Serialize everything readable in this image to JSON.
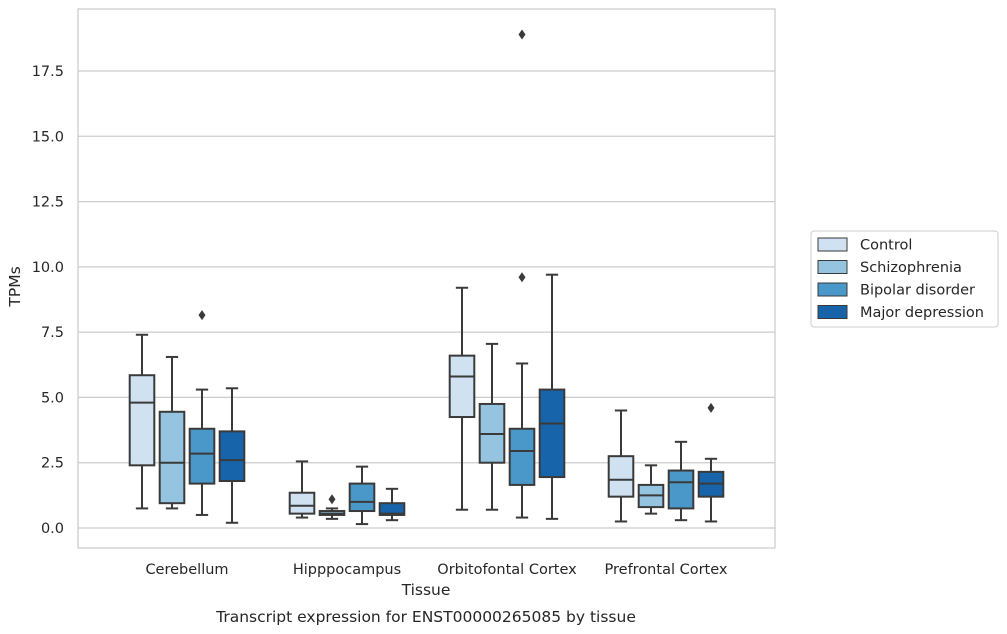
{
  "chart_data": {
    "type": "boxplot",
    "title": "",
    "caption": "Transcript expression for ENST00000265085 by tissue",
    "xlabel": "Tissue",
    "ylabel": "TPMs",
    "ylim": [
      -0.75,
      19.85
    ],
    "yticks": [
      0.0,
      2.5,
      5.0,
      7.5,
      10.0,
      12.5,
      15.0,
      17.5
    ],
    "ytick_labels": [
      "0.0",
      "2.5",
      "5.0",
      "7.5",
      "10.0",
      "12.5",
      "15.0",
      "17.5"
    ],
    "grid": "horizontal",
    "legend_position": "right",
    "categories": [
      "Cerebellum",
      "Hipppocampus",
      "Orbitofontal Cortex",
      "Prefrontal Cortex"
    ],
    "series": [
      {
        "name": "Control",
        "color": "#d0e1f2",
        "boxes": [
          {
            "whisker_low": 0.75,
            "q1": 2.4,
            "median": 4.8,
            "q3": 5.85,
            "whisker_high": 7.4,
            "outliers": []
          },
          {
            "whisker_low": 0.4,
            "q1": 0.55,
            "median": 0.85,
            "q3": 1.35,
            "whisker_high": 2.55,
            "outliers": []
          },
          {
            "whisker_low": 0.7,
            "q1": 4.25,
            "median": 5.8,
            "q3": 6.6,
            "whisker_high": 9.2,
            "outliers": []
          },
          {
            "whisker_low": 0.25,
            "q1": 1.2,
            "median": 1.85,
            "q3": 2.75,
            "whisker_high": 4.5,
            "outliers": []
          }
        ]
      },
      {
        "name": "Schizophrenia",
        "color": "#94c4df",
        "boxes": [
          {
            "whisker_low": 0.75,
            "q1": 0.95,
            "median": 2.5,
            "q3": 4.45,
            "whisker_high": 6.55,
            "outliers": []
          },
          {
            "whisker_low": 0.35,
            "q1": 0.5,
            "median": 0.55,
            "q3": 0.65,
            "whisker_high": 0.75,
            "outliers": [
              1.1
            ]
          },
          {
            "whisker_low": 0.7,
            "q1": 2.5,
            "median": 3.6,
            "q3": 4.75,
            "whisker_high": 7.05,
            "outliers": []
          },
          {
            "whisker_low": 0.55,
            "q1": 0.8,
            "median": 1.25,
            "q3": 1.65,
            "whisker_high": 2.4,
            "outliers": []
          }
        ]
      },
      {
        "name": "Bipolar disorder",
        "color": "#4a98c9",
        "boxes": [
          {
            "whisker_low": 0.5,
            "q1": 1.7,
            "median": 2.85,
            "q3": 3.8,
            "whisker_high": 5.3,
            "outliers": [
              8.15
            ]
          },
          {
            "whisker_low": 0.15,
            "q1": 0.65,
            "median": 1.0,
            "q3": 1.7,
            "whisker_high": 2.35,
            "outliers": []
          },
          {
            "whisker_low": 0.4,
            "q1": 1.65,
            "median": 2.95,
            "q3": 3.8,
            "whisker_high": 6.3,
            "outliers": [
              9.6,
              18.9
            ]
          },
          {
            "whisker_low": 0.3,
            "q1": 0.75,
            "median": 1.75,
            "q3": 2.2,
            "whisker_high": 3.3,
            "outliers": []
          }
        ]
      },
      {
        "name": "Major depression",
        "color": "#1764ab",
        "boxes": [
          {
            "whisker_low": 0.2,
            "q1": 1.8,
            "median": 2.6,
            "q3": 3.7,
            "whisker_high": 5.35,
            "outliers": []
          },
          {
            "whisker_low": 0.3,
            "q1": 0.5,
            "median": 0.55,
            "q3": 0.95,
            "whisker_high": 1.5,
            "outliers": []
          },
          {
            "whisker_low": 0.35,
            "q1": 1.95,
            "median": 4.0,
            "q3": 5.3,
            "whisker_high": 9.7,
            "outliers": []
          },
          {
            "whisker_low": 0.25,
            "q1": 1.2,
            "median": 1.7,
            "q3": 2.15,
            "whisker_high": 2.65,
            "outliers": [
              4.6
            ]
          }
        ]
      }
    ]
  }
}
